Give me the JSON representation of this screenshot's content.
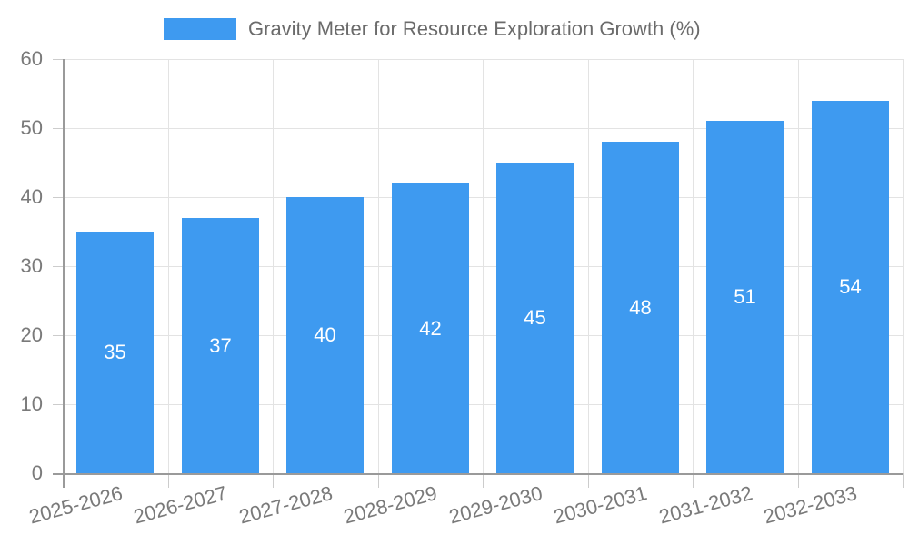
{
  "chart_data": {
    "type": "bar",
    "title": "Gravity Meter for Resource Exploration Growth (%)",
    "xlabel": "",
    "ylabel": "",
    "categories": [
      "2025-2026",
      "2026-2027",
      "2027-2028",
      "2028-2029",
      "2029-2030",
      "2030-2031",
      "2031-2032",
      "2032-2033"
    ],
    "values": [
      35,
      37,
      40,
      42,
      45,
      48,
      51,
      54
    ],
    "bar_value_labels": [
      "35",
      "37",
      "40",
      "42",
      "45",
      "48",
      "51",
      "54"
    ],
    "y_ticks": [
      0,
      10,
      20,
      30,
      40,
      50,
      60
    ],
    "ylim": [
      0,
      60
    ],
    "grid": true,
    "legend_position": "top",
    "colors": {
      "bar": "#3E9AF0",
      "title_text": "#6b6b6b",
      "axis_text": "#7a7a7a",
      "bar_label_text": "#ffffff",
      "gridline": "#e3e3e3",
      "axis_line": "#9a9a9a",
      "tick": "#cccccc",
      "background": "#ffffff"
    }
  }
}
